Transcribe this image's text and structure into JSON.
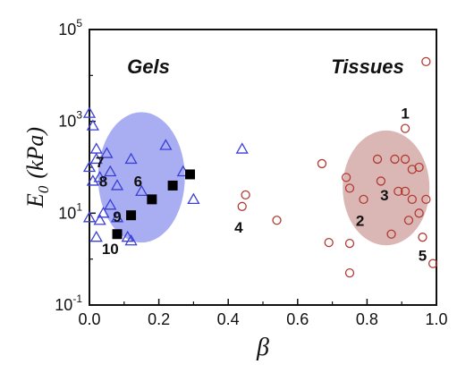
{
  "chart_data": {
    "type": "scatter",
    "xlabel": "β",
    "ylabel_main": "E",
    "ylabel_sub": "0",
    "ylabel_unit": "(kPa)",
    "xlim": [
      0,
      1
    ],
    "ylim_log10": [
      -1,
      5
    ],
    "y_scale": "log",
    "x_ticks": [
      "0.0",
      "0.2",
      "0.4",
      "0.6",
      "0.8",
      "1.0"
    ],
    "y_tick_base": "10",
    "y_tick_exps": [
      "-1",
      "1",
      "3",
      "5"
    ],
    "regions": [
      {
        "label": "Gels",
        "color": "#9aa0f0",
        "cx": 0.15,
        "cy_log": 1.78,
        "rx_data": 0.125,
        "ry_log": 1.42
      },
      {
        "label": "Tissues",
        "color": "#d4aaa8",
        "cx": 0.855,
        "cy_log": 1.55,
        "rx_data": 0.125,
        "ry_log": 1.25
      }
    ],
    "series": [
      {
        "marker": "triangle",
        "color": "#3b3fd6",
        "points": [
          [
            0.0,
            1500
          ],
          [
            0.01,
            800
          ],
          [
            0.02,
            250
          ],
          [
            0.02,
            150
          ],
          [
            0.0,
            100
          ],
          [
            0.05,
            200
          ],
          [
            0.06,
            80
          ],
          [
            0.03,
            60
          ],
          [
            0.01,
            50
          ],
          [
            0.08,
            40
          ],
          [
            0.12,
            150
          ],
          [
            0.15,
            30
          ],
          [
            0.22,
            300
          ],
          [
            0.27,
            80
          ],
          [
            0.3,
            20
          ],
          [
            0.06,
            15
          ],
          [
            0.04,
            10
          ],
          [
            0.08,
            8
          ],
          [
            0.03,
            7
          ],
          [
            0.02,
            3
          ],
          [
            0.11,
            3
          ],
          [
            0.12,
            2.5
          ],
          [
            0.0,
            8
          ],
          [
            0.44,
            250
          ]
        ]
      },
      {
        "marker": "square",
        "color": "#000000",
        "points": [
          [
            0.08,
            3.5
          ],
          [
            0.12,
            9
          ],
          [
            0.18,
            20
          ],
          [
            0.24,
            40
          ],
          [
            0.29,
            70
          ]
        ]
      },
      {
        "marker": "circle",
        "color": "#b23a30",
        "points": [
          [
            0.97,
            20000
          ],
          [
            0.91,
            700
          ],
          [
            0.67,
            120
          ],
          [
            0.74,
            60
          ],
          [
            0.75,
            35
          ],
          [
            0.79,
            20
          ],
          [
            0.84,
            50
          ],
          [
            0.83,
            150
          ],
          [
            0.88,
            150
          ],
          [
            0.91,
            150
          ],
          [
            0.93,
            90
          ],
          [
            0.95,
            100
          ],
          [
            0.89,
            30
          ],
          [
            0.91,
            30
          ],
          [
            0.93,
            20
          ],
          [
            0.97,
            20
          ],
          [
            0.92,
            7
          ],
          [
            0.95,
            10
          ],
          [
            0.96,
            3
          ],
          [
            0.87,
            3.5
          ],
          [
            0.75,
            2.2
          ],
          [
            0.69,
            2.3
          ],
          [
            0.75,
            0.5
          ],
          [
            0.99,
            0.8
          ],
          [
            0.45,
            25
          ],
          [
            0.44,
            14
          ],
          [
            0.54,
            7
          ]
        ]
      }
    ],
    "annotations": [
      {
        "text": "1",
        "x": 0.91,
        "y": 1500
      },
      {
        "text": "2",
        "x": 0.78,
        "y": 7
      },
      {
        "text": "3",
        "x": 0.85,
        "y": 25
      },
      {
        "text": "4",
        "x": 0.43,
        "y": 5
      },
      {
        "text": "5",
        "x": 0.96,
        "y": 1.2
      },
      {
        "text": "6",
        "x": 0.14,
        "y": 50
      },
      {
        "text": "7",
        "x": 0.03,
        "y": 130
      },
      {
        "text": "8",
        "x": 0.04,
        "y": 50
      },
      {
        "text": "9",
        "x": 0.08,
        "y": 8.5
      },
      {
        "text": "10",
        "x": 0.06,
        "y": 1.7
      }
    ]
  }
}
